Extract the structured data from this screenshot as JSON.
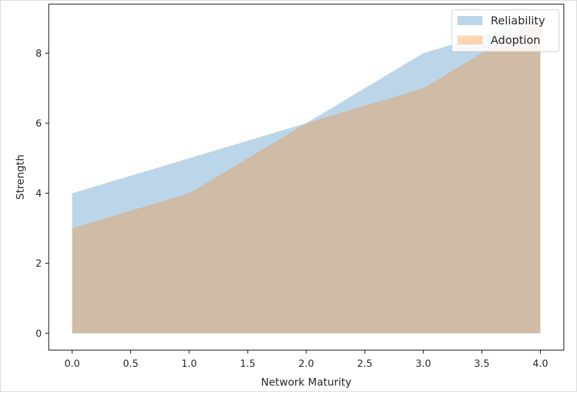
{
  "chart_data": {
    "type": "area",
    "title": "",
    "xlabel": "Network Maturity",
    "ylabel": "Strength",
    "xlim": [
      -0.2,
      4.2
    ],
    "ylim": [
      -0.48,
      9.4
    ],
    "xticks": [
      0.0,
      0.5,
      1.0,
      1.5,
      2.0,
      2.5,
      3.0,
      3.5,
      4.0
    ],
    "xtick_labels": [
      "0.0",
      "0.5",
      "1.0",
      "1.5",
      "2.0",
      "2.5",
      "3.0",
      "3.5",
      "4.0"
    ],
    "yticks": [
      0,
      2,
      4,
      6,
      8
    ],
    "ytick_labels": [
      "0",
      "2",
      "4",
      "6",
      "8"
    ],
    "grid": false,
    "legend_position": "top-right",
    "x": [
      0,
      1,
      2,
      3,
      4
    ],
    "series": [
      {
        "name": "Reliability",
        "values": [
          4,
          5,
          6,
          8,
          9
        ],
        "color": "#1f77b4",
        "alpha": 0.3
      },
      {
        "name": "Adoption",
        "values": [
          3,
          4,
          6,
          7,
          9
        ],
        "color": "#ff7f0e",
        "alpha": 0.3
      }
    ]
  }
}
